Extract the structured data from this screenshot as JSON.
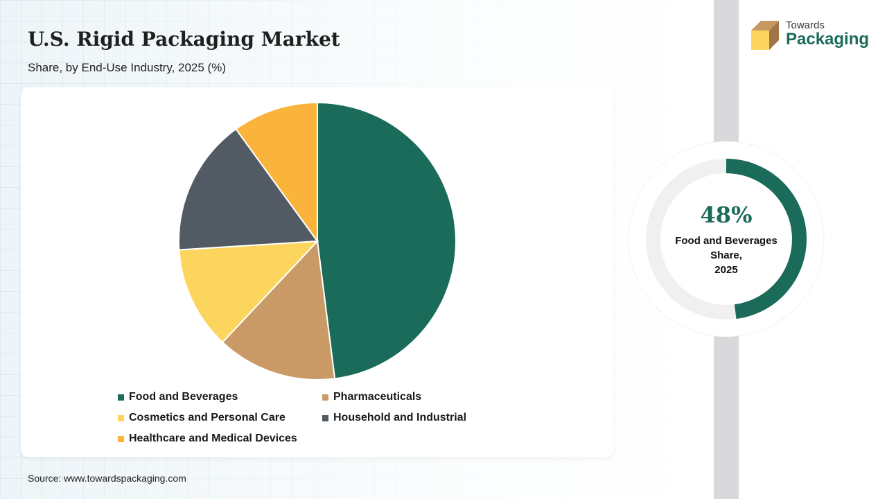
{
  "header": {
    "title": "U.S. Rigid Packaging Market",
    "subtitle": "Share, by End-Use Industry, 2025 (%)"
  },
  "logo": {
    "line1": "Towards",
    "line2": "Packaging",
    "icon": "box-icon"
  },
  "chart_data": {
    "type": "pie",
    "categories": [
      "Food and Beverages",
      "Pharmaceuticals",
      "Cosmetics and Personal Care",
      "Household and Industrial",
      "Healthcare and Medical Devices"
    ],
    "values": [
      48,
      14,
      12,
      16,
      10
    ],
    "colors": [
      "#1a6b5a",
      "#c99a66",
      "#fcd55f",
      "#525a64",
      "#fab33b"
    ],
    "legend_position": "bottom"
  },
  "highlight": {
    "value_text": "48%",
    "value": 48,
    "label_line1": "Food and Beverages",
    "label_line2": "Share,",
    "label_line3": "2025",
    "color": "#1a6b5a",
    "track_color": "#f0f0f0"
  },
  "footer": {
    "source": "Source: www.towardspackaging.com"
  }
}
